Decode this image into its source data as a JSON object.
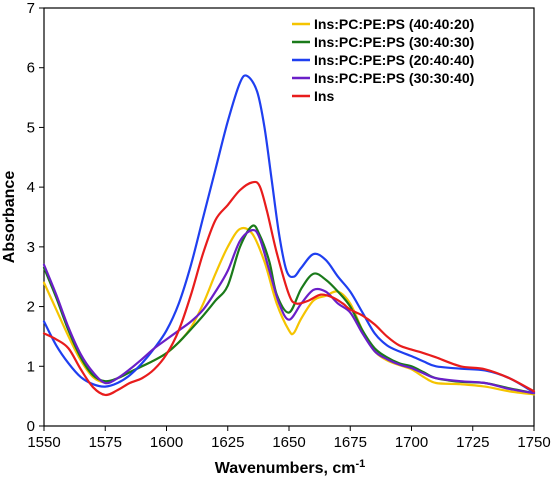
{
  "chart_data": {
    "type": "line",
    "title": "",
    "xlabel": "Wavenumbers, cm",
    "xlabel_sup": "-1",
    "ylabel": "Absorbance",
    "xlim": [
      1550,
      1750
    ],
    "ylim": [
      0,
      7
    ],
    "xticks": [
      1550,
      1575,
      1600,
      1625,
      1650,
      1675,
      1700,
      1725,
      1750
    ],
    "yticks": [
      0,
      1,
      2,
      3,
      4,
      5,
      6,
      7
    ],
    "grid": false,
    "legend_position": "top-right",
    "series": [
      {
        "name": "Ins:PC:PE:PS (40:40:20)",
        "color": "#f5c400",
        "points": [
          [
            1550,
            2.4
          ],
          [
            1555,
            1.95
          ],
          [
            1560,
            1.5
          ],
          [
            1565,
            1.1
          ],
          [
            1570,
            0.82
          ],
          [
            1575,
            0.73
          ],
          [
            1580,
            0.8
          ],
          [
            1585,
            0.9
          ],
          [
            1590,
            1.0
          ],
          [
            1595,
            1.1
          ],
          [
            1600,
            1.22
          ],
          [
            1605,
            1.4
          ],
          [
            1610,
            1.65
          ],
          [
            1615,
            2.05
          ],
          [
            1620,
            2.55
          ],
          [
            1625,
            3.0
          ],
          [
            1630,
            3.3
          ],
          [
            1635,
            3.22
          ],
          [
            1640,
            2.75
          ],
          [
            1645,
            2.05
          ],
          [
            1650,
            1.6
          ],
          [
            1652,
            1.56
          ],
          [
            1655,
            1.8
          ],
          [
            1660,
            2.1
          ],
          [
            1665,
            2.18
          ],
          [
            1670,
            2.25
          ],
          [
            1675,
            2.05
          ],
          [
            1680,
            1.6
          ],
          [
            1685,
            1.25
          ],
          [
            1690,
            1.1
          ],
          [
            1695,
            1.02
          ],
          [
            1700,
            0.95
          ],
          [
            1705,
            0.82
          ],
          [
            1710,
            0.72
          ],
          [
            1720,
            0.7
          ],
          [
            1730,
            0.66
          ],
          [
            1740,
            0.58
          ],
          [
            1750,
            0.53
          ]
        ]
      },
      {
        "name": "Ins:PC:PE:PS (30:40:30)",
        "color": "#1a7a1a",
        "points": [
          [
            1550,
            2.65
          ],
          [
            1555,
            2.15
          ],
          [
            1560,
            1.6
          ],
          [
            1565,
            1.15
          ],
          [
            1570,
            0.85
          ],
          [
            1575,
            0.75
          ],
          [
            1580,
            0.8
          ],
          [
            1585,
            0.9
          ],
          [
            1590,
            1.0
          ],
          [
            1595,
            1.1
          ],
          [
            1600,
            1.22
          ],
          [
            1605,
            1.4
          ],
          [
            1610,
            1.62
          ],
          [
            1615,
            1.85
          ],
          [
            1620,
            2.1
          ],
          [
            1625,
            2.35
          ],
          [
            1630,
            3.0
          ],
          [
            1635,
            3.35
          ],
          [
            1638,
            3.2
          ],
          [
            1642,
            2.75
          ],
          [
            1645,
            2.2
          ],
          [
            1650,
            1.9
          ],
          [
            1655,
            2.3
          ],
          [
            1660,
            2.55
          ],
          [
            1665,
            2.45
          ],
          [
            1670,
            2.25
          ],
          [
            1675,
            2.0
          ],
          [
            1680,
            1.6
          ],
          [
            1685,
            1.3
          ],
          [
            1690,
            1.15
          ],
          [
            1695,
            1.05
          ],
          [
            1700,
            1.0
          ],
          [
            1705,
            0.9
          ],
          [
            1710,
            0.8
          ],
          [
            1720,
            0.74
          ],
          [
            1730,
            0.72
          ],
          [
            1740,
            0.63
          ],
          [
            1750,
            0.55
          ]
        ]
      },
      {
        "name": "Ins:PC:PE:PS (20:40:40)",
        "color": "#1f3ff0",
        "points": [
          [
            1550,
            1.75
          ],
          [
            1555,
            1.35
          ],
          [
            1560,
            1.05
          ],
          [
            1565,
            0.82
          ],
          [
            1570,
            0.7
          ],
          [
            1575,
            0.66
          ],
          [
            1580,
            0.72
          ],
          [
            1585,
            0.85
          ],
          [
            1590,
            1.05
          ],
          [
            1595,
            1.3
          ],
          [
            1600,
            1.6
          ],
          [
            1605,
            2.05
          ],
          [
            1610,
            2.7
          ],
          [
            1615,
            3.5
          ],
          [
            1620,
            4.3
          ],
          [
            1625,
            5.1
          ],
          [
            1630,
            5.75
          ],
          [
            1633,
            5.86
          ],
          [
            1637,
            5.6
          ],
          [
            1640,
            5.0
          ],
          [
            1643,
            4.1
          ],
          [
            1646,
            3.2
          ],
          [
            1649,
            2.6
          ],
          [
            1652,
            2.5
          ],
          [
            1655,
            2.65
          ],
          [
            1660,
            2.88
          ],
          [
            1665,
            2.78
          ],
          [
            1670,
            2.5
          ],
          [
            1675,
            2.25
          ],
          [
            1680,
            1.9
          ],
          [
            1685,
            1.55
          ],
          [
            1690,
            1.35
          ],
          [
            1695,
            1.25
          ],
          [
            1700,
            1.17
          ],
          [
            1705,
            1.08
          ],
          [
            1710,
            1.0
          ],
          [
            1720,
            0.96
          ],
          [
            1730,
            0.93
          ],
          [
            1740,
            0.8
          ],
          [
            1750,
            0.56
          ]
        ]
      },
      {
        "name": "Ins:PC:PE:PS (30:30:40)",
        "color": "#6a1fc8",
        "points": [
          [
            1550,
            2.7
          ],
          [
            1555,
            2.2
          ],
          [
            1560,
            1.65
          ],
          [
            1565,
            1.2
          ],
          [
            1570,
            0.9
          ],
          [
            1575,
            0.72
          ],
          [
            1580,
            0.8
          ],
          [
            1585,
            0.95
          ],
          [
            1590,
            1.12
          ],
          [
            1595,
            1.3
          ],
          [
            1600,
            1.45
          ],
          [
            1605,
            1.6
          ],
          [
            1610,
            1.75
          ],
          [
            1615,
            1.95
          ],
          [
            1620,
            2.25
          ],
          [
            1625,
            2.6
          ],
          [
            1630,
            3.1
          ],
          [
            1635,
            3.28
          ],
          [
            1638,
            3.15
          ],
          [
            1642,
            2.6
          ],
          [
            1646,
            2.05
          ],
          [
            1650,
            1.78
          ],
          [
            1655,
            2.05
          ],
          [
            1660,
            2.28
          ],
          [
            1665,
            2.25
          ],
          [
            1670,
            2.05
          ],
          [
            1675,
            1.9
          ],
          [
            1680,
            1.55
          ],
          [
            1685,
            1.25
          ],
          [
            1690,
            1.12
          ],
          [
            1695,
            1.03
          ],
          [
            1700,
            0.97
          ],
          [
            1705,
            0.88
          ],
          [
            1710,
            0.8
          ],
          [
            1720,
            0.75
          ],
          [
            1730,
            0.72
          ],
          [
            1740,
            0.62
          ],
          [
            1750,
            0.55
          ]
        ]
      },
      {
        "name": "Ins",
        "color": "#e81c1c",
        "points": [
          [
            1550,
            1.55
          ],
          [
            1555,
            1.45
          ],
          [
            1560,
            1.3
          ],
          [
            1565,
            0.95
          ],
          [
            1570,
            0.65
          ],
          [
            1575,
            0.52
          ],
          [
            1580,
            0.6
          ],
          [
            1585,
            0.72
          ],
          [
            1590,
            0.8
          ],
          [
            1595,
            0.95
          ],
          [
            1600,
            1.2
          ],
          [
            1605,
            1.6
          ],
          [
            1610,
            2.2
          ],
          [
            1615,
            2.9
          ],
          [
            1620,
            3.45
          ],
          [
            1625,
            3.7
          ],
          [
            1630,
            3.95
          ],
          [
            1635,
            4.08
          ],
          [
            1638,
            4.02
          ],
          [
            1641,
            3.6
          ],
          [
            1645,
            2.9
          ],
          [
            1650,
            2.2
          ],
          [
            1653,
            2.05
          ],
          [
            1658,
            2.1
          ],
          [
            1663,
            2.2
          ],
          [
            1668,
            2.15
          ],
          [
            1672,
            2.05
          ],
          [
            1675,
            1.95
          ],
          [
            1680,
            1.85
          ],
          [
            1685,
            1.7
          ],
          [
            1690,
            1.5
          ],
          [
            1695,
            1.35
          ],
          [
            1700,
            1.28
          ],
          [
            1705,
            1.22
          ],
          [
            1710,
            1.15
          ],
          [
            1720,
            1.0
          ],
          [
            1730,
            0.95
          ],
          [
            1740,
            0.8
          ],
          [
            1750,
            0.58
          ]
        ]
      }
    ]
  }
}
